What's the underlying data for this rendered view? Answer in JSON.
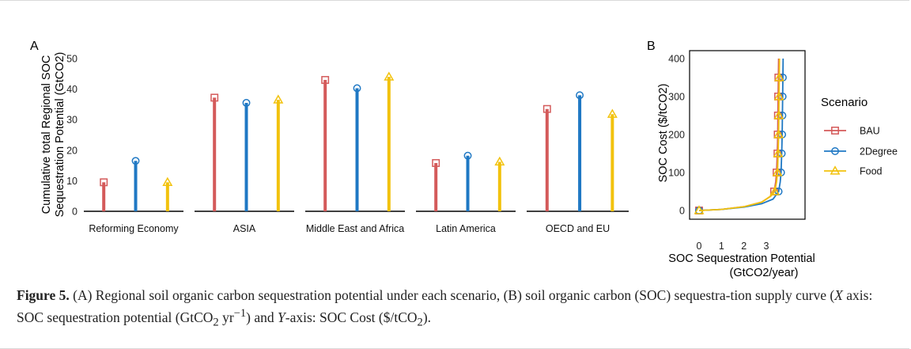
{
  "figure": {
    "panel_a_label": "A",
    "panel_b_label": "B",
    "caption_label": "Figure 5.",
    "caption_parts": [
      {
        "t": "text",
        "v": " (A) Regional soil organic carbon sequestration potential under each scenario, (B) soil organic carbon (SOC) sequestra-tion supply curve ("
      },
      {
        "t": "ital",
        "v": "X"
      },
      {
        "t": "text",
        "v": " axis: SOC sequestration potential (GtCO"
      },
      {
        "t": "sub",
        "v": "2"
      },
      {
        "t": "text",
        "v": " yr"
      },
      {
        "t": "sup",
        "v": "−1"
      },
      {
        "t": "text",
        "v": ") and "
      },
      {
        "t": "ital",
        "v": "Y"
      },
      {
        "t": "text",
        "v": "-axis: SOC Cost ($/tCO"
      },
      {
        "t": "sub",
        "v": "2"
      },
      {
        "t": "text",
        "v": ")."
      }
    ]
  },
  "colors": {
    "BAU": "#d45a5a",
    "2Degree": "#1f78c4",
    "Food": "#f2c20d"
  },
  "chart_data": [
    {
      "type": "bar",
      "panel": "A",
      "ylabel_lines": [
        "Cumulative total Regional SOC",
        "Sequestration Potential (GtCO2)"
      ],
      "ylim": [
        0,
        50
      ],
      "yticks": [
        0,
        10,
        20,
        30,
        40,
        50
      ],
      "categories": [
        "Reforming Economy",
        "ASIA",
        "Middle East and Africa",
        "Latin America",
        "OECD and EU"
      ],
      "series": [
        {
          "name": "BAU",
          "marker": "square",
          "values": [
            9.5,
            37.2,
            43.0,
            15.8,
            33.5
          ]
        },
        {
          "name": "2Degree",
          "marker": "circle",
          "values": [
            16.5,
            35.5,
            40.3,
            18.2,
            38.0
          ]
        },
        {
          "name": "Food",
          "marker": "triangle",
          "values": [
            9.5,
            36.5,
            44.0,
            16.2,
            31.8
          ]
        }
      ]
    },
    {
      "type": "line",
      "panel": "B",
      "xlabel_lines": [
        "SOC Sequestration Potential",
        "(GtCO2/year)"
      ],
      "ylabel": "SOC Cost ($/tCO2)",
      "xlim": [
        0,
        3.9
      ],
      "ylim": [
        0,
        400
      ],
      "xticks": [
        0,
        1,
        2,
        3
      ],
      "yticks": [
        0,
        100,
        200,
        300,
        400
      ],
      "legend": {
        "title": "Scenario",
        "placement": "right"
      },
      "series": [
        {
          "name": "BAU",
          "marker": "square",
          "curve": [
            [
              0,
              0
            ],
            [
              1,
              3
            ],
            [
              2,
              10
            ],
            [
              2.8,
              22
            ],
            [
              3.2,
              38
            ],
            [
              3.35,
              50
            ],
            [
              3.42,
              75
            ],
            [
              3.46,
              100
            ],
            [
              3.49,
              150
            ],
            [
              3.51,
              200
            ],
            [
              3.52,
              250
            ],
            [
              3.53,
              300
            ],
            [
              3.54,
              350
            ],
            [
              3.55,
              400
            ]
          ],
          "markers": [
            [
              0,
              0
            ],
            [
              3.35,
              50
            ],
            [
              3.46,
              100
            ],
            [
              3.5,
              150
            ],
            [
              3.51,
              200
            ],
            [
              3.52,
              250
            ],
            [
              3.53,
              300
            ],
            [
              3.54,
              350
            ]
          ]
        },
        {
          "name": "2Degree",
          "marker": "circle",
          "curve": [
            [
              0,
              0
            ],
            [
              1,
              3
            ],
            [
              2,
              9
            ],
            [
              2.8,
              18
            ],
            [
              3.3,
              30
            ],
            [
              3.55,
              50
            ],
            [
              3.62,
              75
            ],
            [
              3.66,
              100
            ],
            [
              3.69,
              150
            ],
            [
              3.71,
              200
            ],
            [
              3.72,
              250
            ],
            [
              3.73,
              300
            ],
            [
              3.74,
              350
            ],
            [
              3.75,
              400
            ]
          ],
          "markers": [
            [
              0,
              0
            ],
            [
              3.55,
              50
            ],
            [
              3.66,
              100
            ],
            [
              3.69,
              150
            ],
            [
              3.71,
              200
            ],
            [
              3.72,
              250
            ],
            [
              3.73,
              300
            ],
            [
              3.74,
              350
            ]
          ]
        },
        {
          "name": "Food",
          "marker": "triangle",
          "curve": [
            [
              0,
              0
            ],
            [
              1,
              3
            ],
            [
              2,
              10
            ],
            [
              2.8,
              22
            ],
            [
              3.2,
              38
            ],
            [
              3.38,
              50
            ],
            [
              3.46,
              75
            ],
            [
              3.5,
              100
            ],
            [
              3.53,
              150
            ],
            [
              3.55,
              200
            ],
            [
              3.56,
              250
            ],
            [
              3.57,
              300
            ],
            [
              3.58,
              350
            ],
            [
              3.59,
              400
            ]
          ],
          "markers": [
            [
              0,
              0
            ],
            [
              3.38,
              50
            ],
            [
              3.5,
              100
            ],
            [
              3.53,
              150
            ],
            [
              3.55,
              200
            ],
            [
              3.56,
              250
            ],
            [
              3.57,
              300
            ],
            [
              3.58,
              350
            ]
          ]
        }
      ]
    }
  ]
}
